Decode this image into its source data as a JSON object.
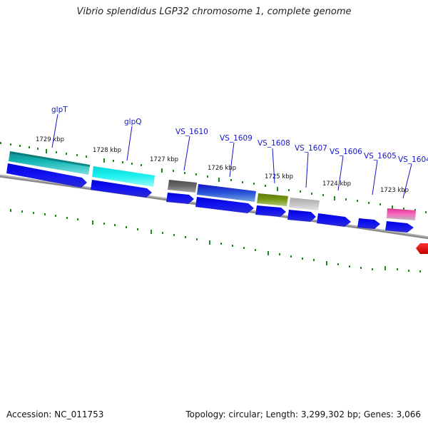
{
  "title": "Vibrio splendidus LGP32 chromosome 1, complete genome",
  "accession_text": "Accession: NC_011753",
  "summary_text": "Topology: circular; Length: 3,299,302 bp; Genes: 3,066",
  "ruler_labels": [
    "1729 kbp",
    "1728 kbp",
    "1727 kbp",
    "1726 kbp",
    "1725 kbp",
    "1724 kbp",
    "1723 kbp"
  ],
  "gene_labels": [
    "glpT",
    "glpQ",
    "VS_1610",
    "VS_1609",
    "VS_1608",
    "VS_1607",
    "VS_1606",
    "VS_1605",
    "VS_1604"
  ],
  "colors": {
    "backbone": "#8c8c8c",
    "ticks": "#1a8a1a",
    "cds_arrow": "#1010ee",
    "label": "#1515c8",
    "glpT": "#10b2b2",
    "glpQ": "#10e8e8",
    "VS_1610": "#606060",
    "VS_1609": "#1c1cd8",
    "VS_1608": "#6e8e12",
    "VS_1607": "#c2c2c2",
    "VS_1604": "#f04eb0",
    "partial_gene": "#ee1111"
  }
}
